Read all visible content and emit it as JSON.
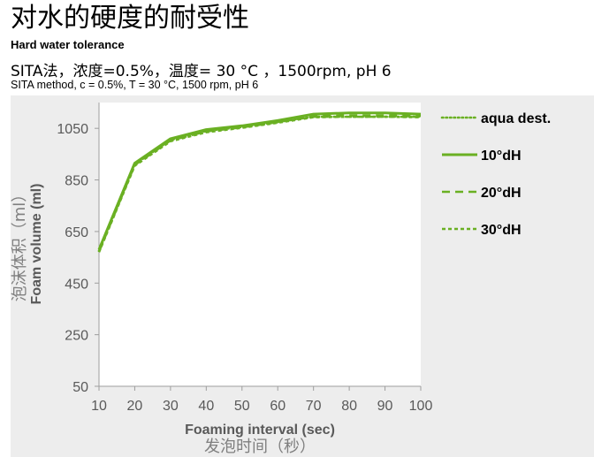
{
  "header": {
    "title_cn": "对水的硬度的耐受性",
    "title_en": "Hard water tolerance",
    "conditions_cn": "SITA法，浓度=0.5%，温度= 30 °C ，1500rpm, pH 6",
    "conditions_en": "SITA method, c = 0.5%, T = 30 °C, 1500 rpm, pH 6"
  },
  "chart_data": {
    "type": "line",
    "xlabel": "Foaming interval (sec)",
    "xlabel_cn": "发泡时间（秒）",
    "ylabel": "Foam volume (ml)",
    "ylabel_cn": "泡沫体积（ml）",
    "xlim": [
      10,
      100
    ],
    "ylim": [
      50,
      1150
    ],
    "x_ticks": [
      "10",
      "20",
      "30",
      "40",
      "50",
      "60",
      "70",
      "80",
      "90",
      "100"
    ],
    "y_ticks": [
      "50",
      "250",
      "450",
      "650",
      "850",
      "1050"
    ],
    "x_tick_values": [
      10,
      20,
      30,
      40,
      50,
      60,
      70,
      80,
      90,
      100
    ],
    "y_tick_values": [
      50,
      250,
      450,
      650,
      850,
      1050
    ],
    "grid": false,
    "legend_position": "right",
    "color": "#6ab023",
    "x": [
      10,
      20,
      30,
      40,
      50,
      60,
      70,
      80,
      90,
      100
    ],
    "series": [
      {
        "name": "aqua dest.",
        "style": "dotted",
        "values": [
          575,
          910,
          1005,
          1040,
          1055,
          1075,
          1095,
          1095,
          1095,
          1095
        ]
      },
      {
        "name": "10°dH",
        "style": "solid",
        "values": [
          580,
          915,
          1010,
          1045,
          1060,
          1080,
          1105,
          1110,
          1110,
          1105
        ]
      },
      {
        "name": "20°dH",
        "style": "dashed",
        "values": [
          572,
          908,
          1003,
          1038,
          1054,
          1074,
          1097,
          1100,
          1100,
          1098
        ]
      },
      {
        "name": "30°dH",
        "style": "short-dash",
        "values": [
          570,
          905,
          1000,
          1035,
          1052,
          1072,
          1093,
          1095,
          1095,
          1093
        ]
      }
    ]
  }
}
